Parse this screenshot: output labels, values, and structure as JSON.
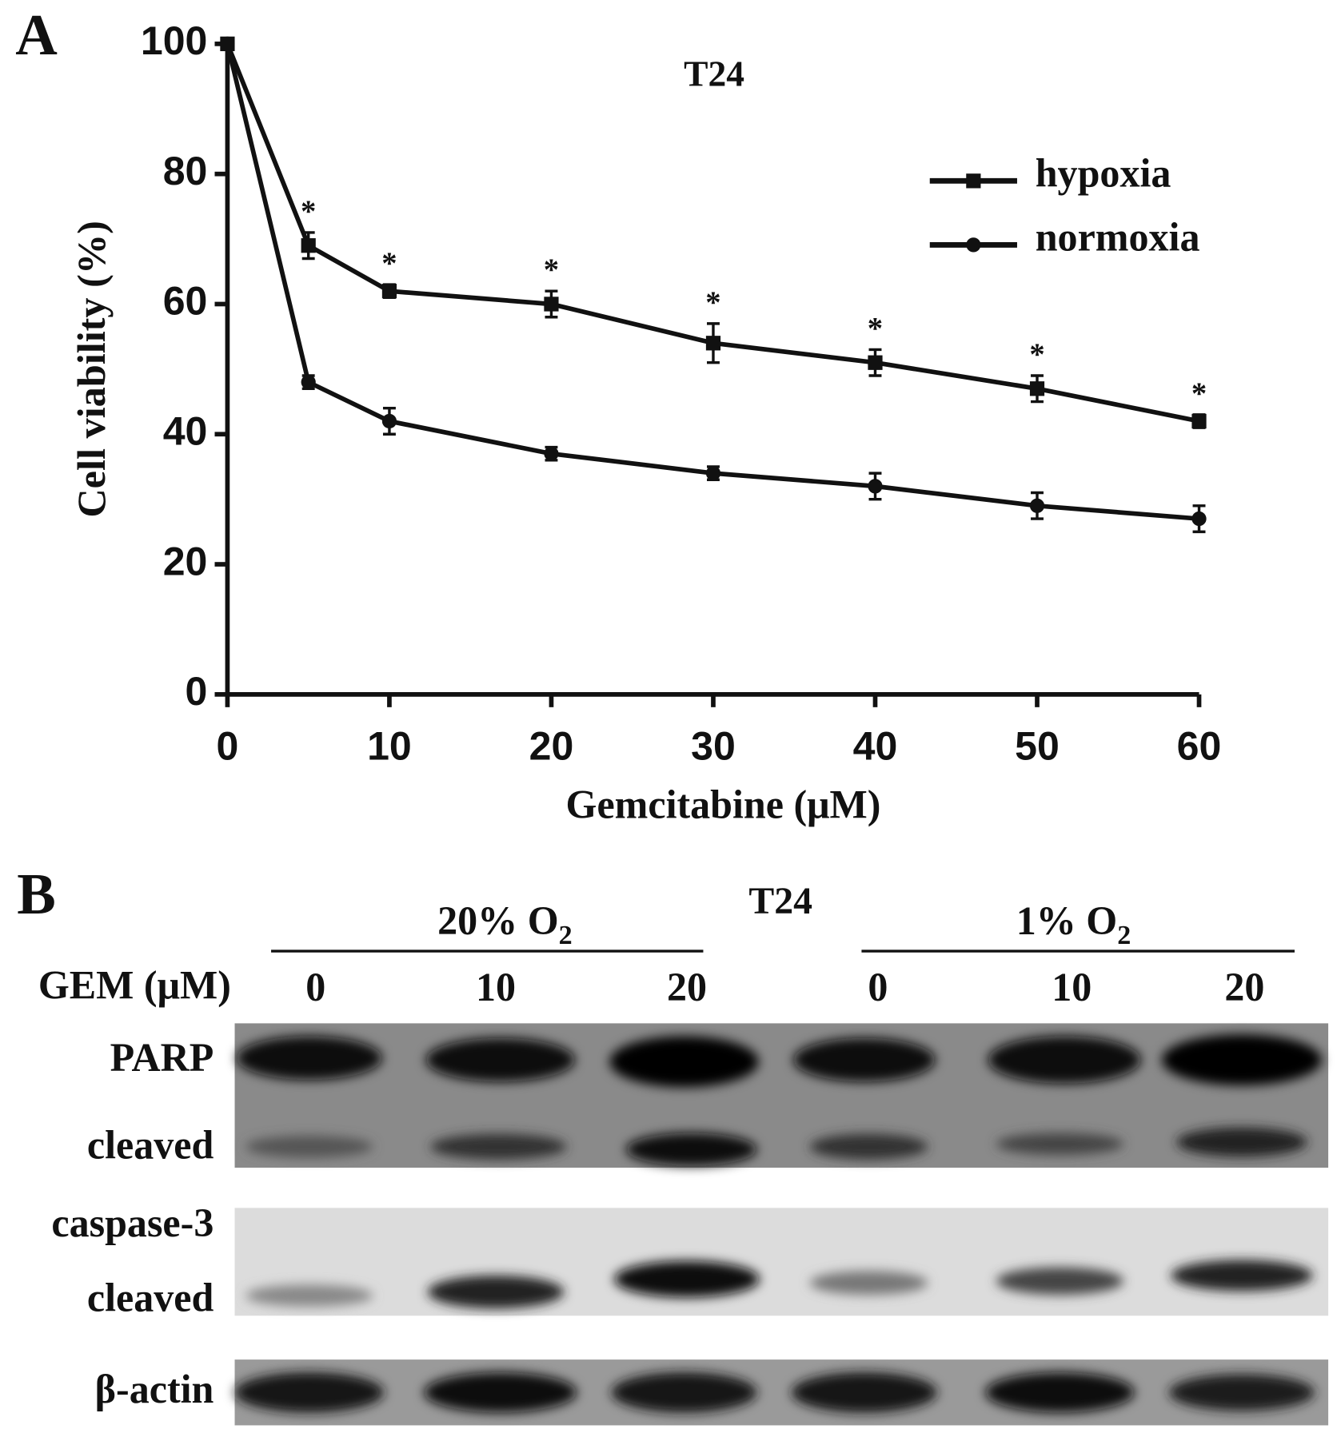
{
  "panel_a_label": "A",
  "chart_data": {
    "type": "line",
    "title": "T24",
    "x_label": "Gemcitabine (μM)",
    "y_label": "Cell viability (%)",
    "x": [
      0,
      5,
      10,
      20,
      30,
      40,
      50,
      60
    ],
    "series": [
      {
        "name": "hypoxia",
        "color": "#111111",
        "marker": "square",
        "values": [
          100,
          69,
          62,
          60,
          54,
          51,
          47,
          42
        ],
        "errors": [
          0,
          2,
          1,
          2,
          3,
          2,
          2,
          1
        ],
        "significance": [
          null,
          "*",
          "*",
          "*",
          "*",
          "*",
          "*",
          "*"
        ]
      },
      {
        "name": "normoxia",
        "color": "#111111",
        "marker": "circle",
        "values": [
          100,
          48,
          42,
          37,
          34,
          32,
          29,
          27
        ],
        "errors": [
          0,
          1,
          2,
          1,
          1,
          2,
          2,
          2
        ]
      }
    ],
    "xlim": [
      0,
      60
    ],
    "xticks": [
      0,
      10,
      20,
      30,
      40,
      50,
      60
    ],
    "ylim": [
      0,
      100
    ],
    "yticks": [
      0,
      20,
      40,
      60,
      80,
      100
    ],
    "legend": "upper right",
    "grid": false
  },
  "blot": {
    "panel_label": "B",
    "title": "T24",
    "conditions": [
      {
        "text": "20% O",
        "subscript": "2"
      },
      {
        "text": "1% O",
        "subscript": "2"
      }
    ],
    "dose_label": "GEM (μM)",
    "lanes": [
      "0",
      "10",
      "20",
      "0",
      "10",
      "20"
    ],
    "rows": [
      "PARP",
      "cleaved",
      "caspase-3",
      "cleaved",
      "β-actin"
    ]
  }
}
